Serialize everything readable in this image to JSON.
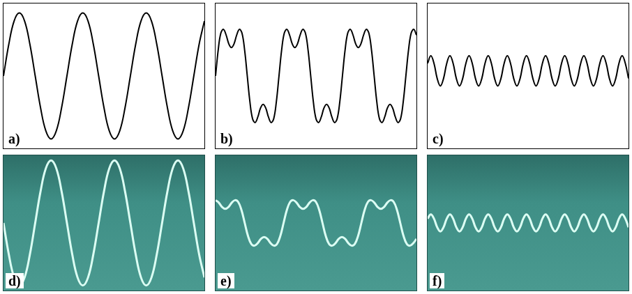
{
  "chart_data": [
    {
      "type": "line",
      "title": "a)",
      "color": "#000000",
      "grid": false,
      "tick_labels": false,
      "xlim": [
        0,
        38
      ],
      "ylim": [
        -1.15,
        1.15
      ],
      "x": [
        0,
        1,
        2,
        3,
        4,
        5,
        6,
        7,
        8,
        9,
        10,
        11,
        12,
        13,
        14,
        15,
        16,
        17,
        18,
        19,
        20,
        21,
        22,
        23,
        24,
        25,
        26,
        27,
        28,
        29,
        30,
        31,
        32,
        33,
        34,
        35,
        36,
        37,
        38
      ],
      "values": [
        0,
        0.5,
        0.87,
        1,
        0.87,
        0.5,
        0,
        -0.5,
        -0.87,
        -1,
        -0.87,
        -0.5,
        0,
        0.5,
        0.87,
        1,
        0.87,
        0.5,
        0,
        -0.5,
        -0.87,
        -1,
        -0.87,
        -0.5,
        0,
        0.5,
        0.87,
        1,
        0.87,
        0.5,
        0,
        -0.5,
        -0.87,
        -1,
        -0.87,
        -0.5,
        0,
        0.5,
        0.87
      ]
    },
    {
      "type": "line",
      "title": "b)",
      "color": "#000000",
      "grid": false,
      "tick_labels": false,
      "xlim": [
        0,
        76
      ],
      "ylim": [
        -1.15,
        1.15
      ],
      "x": [
        0,
        1,
        2,
        3,
        4,
        5,
        6,
        7,
        8,
        9,
        10,
        11,
        12,
        13,
        14,
        15,
        16,
        17,
        18,
        19,
        20,
        21,
        22,
        23,
        24,
        25,
        26,
        27,
        28,
        29,
        30,
        31,
        32,
        33,
        34,
        35,
        36,
        37,
        38,
        39,
        40,
        41,
        42,
        43,
        44,
        45,
        46,
        47,
        48,
        49,
        50,
        51,
        52,
        53,
        54,
        55,
        56,
        57,
        58,
        59,
        60,
        61,
        62,
        63,
        64,
        65,
        66,
        67,
        68,
        69,
        70,
        71,
        72,
        73,
        74,
        75,
        76
      ],
      "values": [
        0,
        0.41,
        0.68,
        0.74,
        0.65,
        0.51,
        0.45,
        0.51,
        0.65,
        0.74,
        0.68,
        0.41,
        0,
        -0.41,
        -0.68,
        -0.74,
        -0.65,
        -0.51,
        -0.45,
        -0.51,
        -0.65,
        -0.74,
        -0.68,
        -0.41,
        0,
        0.41,
        0.68,
        0.74,
        0.65,
        0.51,
        0.45,
        0.51,
        0.65,
        0.74,
        0.68,
        0.41,
        0,
        -0.41,
        -0.68,
        -0.74,
        -0.65,
        -0.51,
        -0.45,
        -0.51,
        -0.65,
        -0.74,
        -0.68,
        -0.41,
        0,
        0.41,
        0.68,
        0.74,
        0.65,
        0.51,
        0.45,
        0.51,
        0.65,
        0.74,
        0.68,
        0.41,
        0,
        -0.41,
        -0.68,
        -0.74,
        -0.65,
        -0.51,
        -0.45,
        -0.51,
        -0.65,
        -0.74,
        -0.68,
        -0.41,
        0,
        0.41,
        0.68,
        0.74,
        0.65
      ]
    },
    {
      "type": "line",
      "title": "c)",
      "color": "#000000",
      "grid": false,
      "tick_labels": false,
      "xlim": [
        0,
        63
      ],
      "ylim": [
        -1.15,
        1.15
      ],
      "x": [
        0,
        1,
        2,
        3,
        4,
        5,
        6,
        7,
        8,
        9,
        10,
        11,
        12,
        13,
        14,
        15,
        16,
        17,
        18,
        19,
        20,
        21,
        22,
        23,
        24,
        25,
        26,
        27,
        28,
        29,
        30,
        31,
        32,
        33,
        34,
        35,
        36,
        37,
        38,
        39,
        40,
        41,
        42,
        43,
        44,
        45,
        46,
        47,
        48,
        49,
        50,
        51,
        52,
        53,
        54,
        55,
        56,
        57,
        58,
        59,
        60,
        61,
        62,
        63
      ],
      "values": [
        0.2,
        0.32,
        0.2,
        -0.04,
        -0.16,
        -0.04,
        0.2,
        0.32,
        0.2,
        -0.04,
        -0.16,
        -0.04,
        0.2,
        0.32,
        0.2,
        -0.04,
        -0.16,
        -0.04,
        0.2,
        0.32,
        0.2,
        -0.04,
        -0.16,
        -0.04,
        0.2,
        0.32,
        0.2,
        -0.04,
        -0.16,
        -0.04,
        0.2,
        0.32,
        0.2,
        -0.04,
        -0.16,
        -0.04,
        0.2,
        0.32,
        0.2,
        -0.04,
        -0.16,
        -0.04,
        0.2,
        0.32,
        0.2,
        -0.04,
        -0.16,
        -0.04,
        0.2,
        0.32,
        0.2,
        -0.04,
        -0.16,
        -0.04,
        0.2,
        0.32,
        0.2,
        -0.04,
        -0.16,
        -0.04,
        0.2,
        0.32,
        0.2,
        -0.04
      ]
    },
    {
      "type": "line",
      "title": "d)",
      "color": "#dcfff4",
      "grid": false,
      "tick_labels": false,
      "xlim": [
        0,
        38
      ],
      "ylim": [
        -1.08,
        1.08
      ],
      "x": [
        0,
        1,
        2,
        3,
        4,
        5,
        6,
        7,
        8,
        9,
        10,
        11,
        12,
        13,
        14,
        15,
        16,
        17,
        18,
        19,
        20,
        21,
        22,
        23,
        24,
        25,
        26,
        27,
        28,
        29,
        30,
        31,
        32,
        33,
        34,
        35,
        36,
        37,
        38
      ],
      "values": [
        0,
        -0.5,
        -0.87,
        -1,
        -0.87,
        -0.5,
        0,
        0.5,
        0.87,
        1,
        0.87,
        0.5,
        0,
        -0.5,
        -0.87,
        -1,
        -0.87,
        -0.5,
        0,
        0.5,
        0.87,
        1,
        0.87,
        0.5,
        0,
        -0.5,
        -0.87,
        -1,
        -0.87,
        -0.5,
        0,
        0.5,
        0.87,
        1,
        0.87,
        0.5,
        0,
        -0.5,
        -0.87
      ]
    },
    {
      "type": "line",
      "title": "e)",
      "color": "#dcfff4",
      "grid": false,
      "tick_labels": false,
      "xlim": [
        0,
        62
      ],
      "ylim": [
        -1.1,
        1.1
      ],
      "x": [
        0,
        1,
        2,
        3,
        4,
        5,
        6,
        7,
        8,
        9,
        10,
        11,
        12,
        13,
        14,
        15,
        16,
        17,
        18,
        19,
        20,
        21,
        22,
        23,
        24,
        25,
        26,
        27,
        28,
        29,
        30,
        31,
        32,
        33,
        34,
        35,
        36,
        37,
        38,
        39,
        40,
        41,
        42,
        43,
        44,
        45,
        46,
        47,
        48,
        49,
        50,
        51,
        52,
        53,
        54,
        55,
        56,
        57,
        58,
        59,
        60,
        61,
        62
      ],
      "values": [
        0.37,
        0.33,
        0.26,
        0.23,
        0.26,
        0.33,
        0.37,
        0.34,
        0.21,
        0,
        -0.21,
        -0.34,
        -0.37,
        -0.33,
        -0.26,
        -0.23,
        -0.26,
        -0.33,
        -0.37,
        -0.34,
        -0.21,
        0,
        0.21,
        0.34,
        0.37,
        0.33,
        0.26,
        0.23,
        0.26,
        0.33,
        0.37,
        0.34,
        0.21,
        0,
        -0.21,
        -0.34,
        -0.37,
        -0.33,
        -0.26,
        -0.23,
        -0.26,
        -0.33,
        -0.37,
        -0.34,
        -0.21,
        0,
        0.21,
        0.34,
        0.37,
        0.33,
        0.26,
        0.23,
        0.26,
        0.33,
        0.37,
        0.34,
        0.21,
        0,
        -0.21,
        -0.34,
        -0.37,
        -0.33,
        -0.26
      ]
    },
    {
      "type": "line",
      "title": "f)",
      "color": "#dcfff4",
      "grid": false,
      "tick_labels": false,
      "xlim": [
        0,
        63
      ],
      "ylim": [
        -1.1,
        1.1
      ],
      "x": [
        0,
        1,
        2,
        3,
        4,
        5,
        6,
        7,
        8,
        9,
        10,
        11,
        12,
        13,
        14,
        15,
        16,
        17,
        18,
        19,
        20,
        21,
        22,
        23,
        24,
        25,
        26,
        27,
        28,
        29,
        30,
        31,
        32,
        33,
        34,
        35,
        36,
        37,
        38,
        39,
        40,
        41,
        42,
        43,
        44,
        45,
        46,
        47,
        48,
        49,
        50,
        51,
        52,
        53,
        54,
        55,
        56,
        57,
        58,
        59,
        60,
        61,
        62,
        63
      ],
      "values": [
        0.07,
        0.14,
        0.07,
        -0.07,
        -0.14,
        -0.07,
        0.07,
        0.14,
        0.07,
        -0.07,
        -0.14,
        -0.07,
        0.07,
        0.14,
        0.07,
        -0.07,
        -0.14,
        -0.07,
        0.07,
        0.14,
        0.07,
        -0.07,
        -0.14,
        -0.07,
        0.07,
        0.14,
        0.07,
        -0.07,
        -0.14,
        -0.07,
        0.07,
        0.14,
        0.07,
        -0.07,
        -0.14,
        -0.07,
        0.07,
        0.14,
        0.07,
        -0.07,
        -0.14,
        -0.07,
        0.07,
        0.14,
        0.07,
        -0.07,
        -0.14,
        -0.07,
        0.07,
        0.14,
        0.07,
        -0.07,
        -0.14,
        -0.07,
        0.07,
        0.14,
        0.07,
        -0.07,
        -0.14,
        -0.07,
        0.07,
        0.14,
        0.07,
        -0.07
      ]
    }
  ]
}
